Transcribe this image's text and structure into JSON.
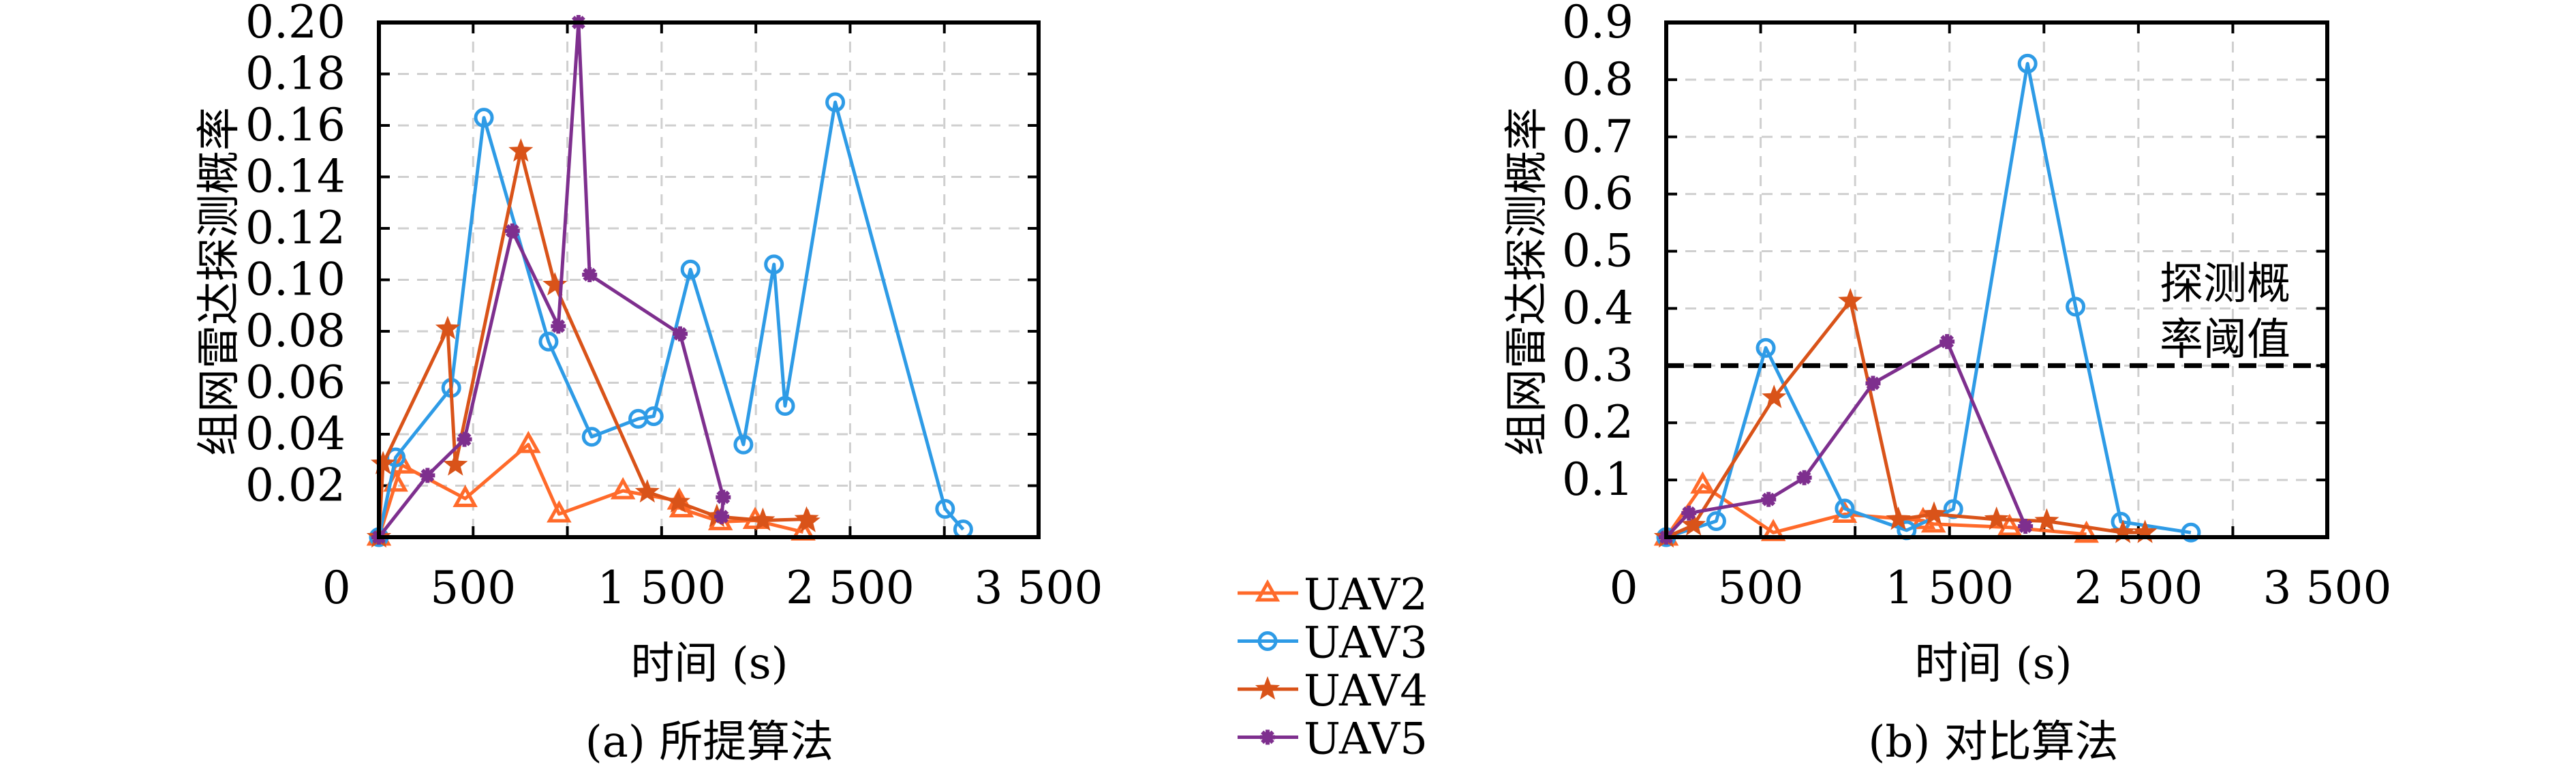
{
  "chart_data": [
    {
      "type": "line",
      "caption": "(a) 所提算法",
      "xlabel": "时间 (s)",
      "ylabel": "组网雷达探测概率",
      "xlim": [
        0,
        3500
      ],
      "ylim": [
        0,
        0.2
      ],
      "xtick_labels": [
        {
          "v": -225,
          "t": "0"
        },
        {
          "v": 500,
          "t": "500"
        },
        {
          "v": 1500,
          "t": "1 500"
        },
        {
          "v": 2500,
          "t": "2 500"
        },
        {
          "v": 3500,
          "t": "3 500"
        }
      ],
      "xgrid": [
        500,
        1000,
        1500,
        2000,
        2500,
        3000
      ],
      "yticks": [
        0.02,
        0.04,
        0.06,
        0.08,
        0.1,
        0.12,
        0.14,
        0.16,
        0.18,
        0.2
      ],
      "ytick_labels": [
        "0.02",
        "0.04",
        "0.06",
        "0.08",
        "0.10",
        "0.12",
        "0.14",
        "0.16",
        "0.18",
        "0.20"
      ],
      "grid": true,
      "series": [
        {
          "name": "UAV2",
          "x": [
            0,
            89,
            122,
            458,
            793,
            956,
            1295,
            1594,
            1605,
            1812,
            1996,
            2251
          ],
          "y": [
            0,
            0.021,
            0.028,
            0.015,
            0.036,
            0.009,
            0.018,
            0.014,
            0.011,
            0.006,
            0.0065,
            0.002
          ]
        },
        {
          "name": "UAV3",
          "x": [
            0,
            89,
            384,
            557,
            900,
            1129,
            1376,
            1458,
            1653,
            1934,
            2096,
            2155,
            2421,
            3004,
            3100
          ],
          "y": [
            0,
            0.031,
            0.058,
            0.163,
            0.076,
            0.039,
            0.046,
            0.047,
            0.104,
            0.036,
            0.106,
            0.051,
            0.169,
            0.011,
            0.003
          ]
        },
        {
          "name": "UAV4",
          "x": [
            0,
            22,
            365,
            406,
            753,
            934,
            1424,
            1587,
            1793,
            2037,
            2269,
            2277
          ],
          "y": [
            0,
            0.0285,
            0.081,
            0.028,
            0.15,
            0.098,
            0.0175,
            0.0136,
            0.008,
            0.0065,
            0.007,
            0.006
          ]
        },
        {
          "name": "UAV5",
          "x": [
            0,
            258,
            454,
            708,
            952,
            1059,
            1118,
            1598,
            1827,
            1819
          ],
          "y": [
            0,
            0.024,
            0.038,
            0.119,
            0.082,
            0.2,
            0.102,
            0.079,
            0.0155,
            0.008
          ]
        }
      ]
    },
    {
      "type": "line",
      "caption": "(b) 对比算法",
      "xlabel": "时间 (s)",
      "ylabel": "组网雷达探测概率",
      "xlim": [
        0,
        3500
      ],
      "ylim": [
        0,
        0.9
      ],
      "xtick_labels": [
        {
          "v": -225,
          "t": "0"
        },
        {
          "v": 500,
          "t": "500"
        },
        {
          "v": 1500,
          "t": "1 500"
        },
        {
          "v": 2500,
          "t": "2 500"
        },
        {
          "v": 3500,
          "t": "3 500"
        }
      ],
      "xgrid": [
        500,
        1000,
        1500,
        2000,
        2500,
        3000
      ],
      "yticks": [
        0.1,
        0.2,
        0.3,
        0.4,
        0.5,
        0.6,
        0.7,
        0.8,
        0.9
      ],
      "ytick_labels": [
        "0.1",
        "0.2",
        "0.3",
        "0.4",
        "0.5",
        "0.6",
        "0.7",
        "0.8",
        "0.9"
      ],
      "grid": true,
      "threshold": {
        "value": 0.3,
        "label_lines": [
          "探测概",
          "率阈值"
        ]
      },
      "series": [
        {
          "name": "UAV2",
          "x": [
            0,
            193,
            567,
            945,
            1360,
            1415,
            1818,
            2225
          ],
          "y": [
            0,
            0.091,
            0.008,
            0.04,
            0.029,
            0.023,
            0.017,
            0.005
          ]
        },
        {
          "name": "UAV3",
          "x": [
            0,
            265,
            527,
            945,
            1273,
            1520,
            1913,
            2167,
            2407,
            2778
          ],
          "y": [
            0,
            0.028,
            0.331,
            0.05,
            0.012,
            0.049,
            0.828,
            0.403,
            0.027,
            0.008
          ]
        },
        {
          "name": "UAV4",
          "x": [
            0,
            145,
            571,
            975,
            1229,
            1418,
            1749,
            2015,
            2418,
            2535
          ],
          "y": [
            0,
            0.021,
            0.244,
            0.413,
            0.031,
            0.04,
            0.031,
            0.028,
            0.008,
            0.008
          ]
        },
        {
          "name": "UAV5",
          "x": [
            0,
            120,
            542,
            731,
            1095,
            1487,
            1902
          ],
          "y": [
            0,
            0.042,
            0.066,
            0.104,
            0.269,
            0.342,
            0.019
          ]
        }
      ]
    }
  ],
  "legend": {
    "placement": "between-panels-bottom",
    "entries": [
      {
        "name": "UAV2",
        "color": "#FF6A2A",
        "marker": "triangle"
      },
      {
        "name": "UAV3",
        "color": "#2E9BE6",
        "marker": "circle"
      },
      {
        "name": "UAV4",
        "color": "#D95319",
        "marker": "star"
      },
      {
        "name": "UAV5",
        "color": "#7E2F8E",
        "marker": "asterisk"
      }
    ]
  }
}
